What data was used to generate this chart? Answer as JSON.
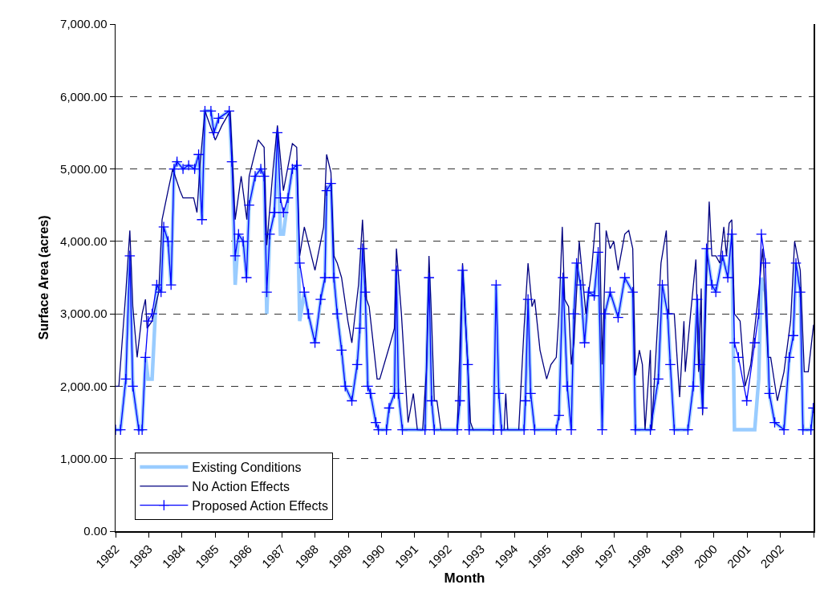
{
  "chart_data": {
    "type": "line",
    "xlabel": "Month",
    "ylabel": "Surface Area (acres)",
    "xlim": [
      1982,
      2003
    ],
    "xticks": [
      1982,
      1983,
      1984,
      1985,
      1986,
      1987,
      1988,
      1989,
      1990,
      1991,
      1992,
      1993,
      1994,
      1995,
      1996,
      1997,
      1998,
      1999,
      2000,
      2001,
      2002,
      {
        "value": 2003,
        "label": null
      }
    ],
    "ylim": [
      0,
      7000
    ],
    "yticks": [
      {
        "value": 0,
        "label": "0.00"
      },
      {
        "value": 1000,
        "label": "1,000.00"
      },
      {
        "value": 2000,
        "label": "2,000.00"
      },
      {
        "value": 3000,
        "label": "3,000.00"
      },
      {
        "value": 4000,
        "label": "4,000.00"
      },
      {
        "value": 5000,
        "label": "5,000.00"
      },
      {
        "value": 6000,
        "label": "6,000.00"
      },
      {
        "value": 7000,
        "label": "7,000.00"
      }
    ],
    "grid": "y",
    "legend": "bottom left",
    "line_style": "solid",
    "series": [
      {
        "name": "Existing Conditions",
        "color": "#99ccff",
        "marker": "none",
        "x": [
          1982.0,
          1982.15,
          1982.31,
          1982.43,
          1982.52,
          1982.7,
          1982.8,
          1982.9,
          1982.98,
          1983.1,
          1983.24,
          1983.37,
          1983.45,
          1983.58,
          1983.67,
          1983.76,
          1983.85,
          1984.03,
          1984.2,
          1984.38,
          1984.5,
          1984.6,
          1984.69,
          1984.87,
          1984.96,
          1985.1,
          1985.42,
          1985.5,
          1985.6,
          1985.7,
          1985.84,
          1985.94,
          1986.02,
          1986.2,
          1986.37,
          1986.47,
          1986.55,
          1986.64,
          1986.78,
          1986.87,
          1986.96,
          1987.05,
          1987.19,
          1987.32,
          1987.45,
          1987.54,
          1987.68,
          1987.8,
          1988.0,
          1988.17,
          1988.3,
          1988.35,
          1988.48,
          1988.57,
          1988.67,
          1988.8,
          1988.91,
          1989.11,
          1989.27,
          1989.35,
          1989.43,
          1989.51,
          1989.59,
          1989.67,
          1989.83,
          1989.91,
          1990.15,
          1990.23,
          1990.39,
          1990.45,
          1990.51,
          1990.63,
          1991.31,
          1991.43,
          1991.51,
          1991.59,
          1992.28,
          1992.36,
          1992.44,
          1992.6,
          1992.64,
          1993.37,
          1993.45,
          1993.53,
          1993.61,
          1994.29,
          1994.33,
          1994.41,
          1994.49,
          1994.61,
          1995.26,
          1995.34,
          1995.46,
          1995.59,
          1995.71,
          1995.79,
          1995.87,
          1995.99,
          1996.11,
          1996.23,
          1996.4,
          1996.52,
          1996.64,
          1996.72,
          1996.88,
          1997.12,
          1997.32,
          1997.56,
          1997.64,
          1998.09,
          1998.33,
          1998.45,
          1998.61,
          1998.69,
          1998.81,
          1999.22,
          1999.38,
          1999.5,
          1999.58,
          1999.66,
          1999.78,
          1999.94,
          2000.06,
          2000.26,
          2000.42,
          2000.54,
          2000.62,
          2000.74,
          2000.99,
          2001.23,
          2001.35,
          2001.43,
          2001.55,
          2001.67,
          2001.83,
          2002.11,
          2002.27,
          2002.39,
          2002.47,
          2002.6,
          2002.68,
          2002.92,
          2002.99
        ],
        "values": [
          1400,
          1400,
          2100,
          3800,
          2000,
          1400,
          1400,
          2400,
          2100,
          2100,
          3400,
          3300,
          4200,
          4000,
          3400,
          5000,
          5100,
          5000,
          5050,
          5000,
          5200,
          4300,
          5800,
          5800,
          5500,
          5700,
          5800,
          5100,
          3400,
          4100,
          4000,
          3500,
          4500,
          4900,
          5000,
          4900,
          3000,
          4100,
          4400,
          5500,
          4100,
          4100,
          4600,
          5000,
          5050,
          2900,
          3300,
          3000,
          2600,
          3200,
          3500,
          4700,
          4800,
          3500,
          3000,
          2500,
          2000,
          1800,
          2300,
          2800,
          3900,
          3300,
          2000,
          1900,
          1500,
          1400,
          1400,
          1700,
          1900,
          3600,
          1900,
          1400,
          1400,
          3500,
          1800,
          1400,
          1400,
          1800,
          3600,
          2300,
          1400,
          1400,
          3400,
          1900,
          1400,
          1400,
          1800,
          3200,
          1900,
          1400,
          1400,
          1600,
          3500,
          2000,
          1400,
          3000,
          3700,
          3400,
          2600,
          3300,
          3250,
          3850,
          1400,
          3000,
          3300,
          2950,
          3500,
          3300,
          1400,
          1400,
          2100,
          3400,
          3000,
          2300,
          1400,
          1400,
          2000,
          3200,
          2300,
          1700,
          3900,
          3400,
          3300,
          3800,
          3500,
          4100,
          1400,
          1400,
          1400,
          1400,
          2100,
          3500,
          3300,
          1900,
          1500,
          1400,
          2400,
          2700,
          3700,
          3300,
          1400,
          1400,
          1700
        ]
      },
      {
        "name": "No Action Effects",
        "color": "#000080",
        "marker": "none",
        "x": [
          1982.0,
          1982.1,
          1982.31,
          1982.43,
          1982.52,
          1982.65,
          1982.8,
          1982.9,
          1982.95,
          1983.1,
          1983.3,
          1983.4,
          1983.58,
          1983.72,
          1983.94,
          1984.03,
          1984.35,
          1984.45,
          1984.55,
          1984.69,
          1985.0,
          1985.2,
          1985.45,
          1985.6,
          1985.78,
          1985.95,
          1986.02,
          1986.29,
          1986.47,
          1986.55,
          1986.74,
          1986.87,
          1987.05,
          1987.32,
          1987.45,
          1987.54,
          1987.68,
          1988.0,
          1988.26,
          1988.35,
          1988.48,
          1988.57,
          1988.67,
          1988.8,
          1988.99,
          1989.11,
          1989.31,
          1989.43,
          1989.55,
          1989.63,
          1989.87,
          1989.95,
          1990.27,
          1990.39,
          1990.45,
          1990.6,
          1990.8,
          1990.96,
          1991.08,
          1991.24,
          1991.35,
          1991.43,
          1991.51,
          1991.59,
          1991.67,
          1991.79,
          1992.28,
          1992.44,
          1992.52,
          1992.68,
          1992.76,
          1993.69,
          1993.74,
          1993.8,
          1994.13,
          1994.29,
          1994.41,
          1994.53,
          1994.61,
          1994.77,
          1994.97,
          1995.1,
          1995.26,
          1995.34,
          1995.44,
          1995.51,
          1995.63,
          1995.71,
          1995.79,
          1995.95,
          1996.15,
          1996.32,
          1996.44,
          1996.56,
          1996.64,
          1996.76,
          1996.88,
          1996.99,
          1997.12,
          1997.32,
          1997.44,
          1997.56,
          1997.64,
          1997.76,
          1997.85,
          1997.93,
          1998.09,
          1998.13,
          1998.41,
          1998.57,
          1998.65,
          1998.81,
          1998.97,
          1999.1,
          1999.14,
          1999.3,
          1999.46,
          1999.54,
          1999.62,
          1999.66,
          1999.78,
          1999.86,
          1999.94,
          2000.06,
          2000.18,
          2000.3,
          2000.38,
          2000.46,
          2000.54,
          2000.62,
          2000.79,
          2000.94,
          2001.11,
          2001.35,
          2001.47,
          2001.63,
          2001.71,
          2001.91,
          2002.11,
          2002.31,
          2002.43,
          2002.6,
          2002.72,
          2002.84,
          2003.0
        ],
        "values": [
          2000,
          2000,
          3300,
          4150,
          3100,
          2400,
          3000,
          3200,
          2800,
          2900,
          3300,
          4300,
          4700,
          5000,
          4700,
          4600,
          4600,
          4400,
          5100,
          5800,
          5400,
          5600,
          5800,
          4300,
          4900,
          4300,
          4900,
          5400,
          5300,
          3950,
          5000,
          5600,
          4700,
          5350,
          5300,
          3800,
          4200,
          3600,
          4200,
          5200,
          4950,
          3800,
          3700,
          3500,
          2900,
          2600,
          3400,
          4300,
          3200,
          3100,
          2100,
          2100,
          2600,
          2800,
          3900,
          3000,
          1500,
          1900,
          1400,
          1400,
          2200,
          3800,
          2900,
          1800,
          1800,
          1400,
          1400,
          3700,
          3000,
          1500,
          1400,
          1400,
          1900,
          1400,
          1400,
          2800,
          3700,
          3100,
          3200,
          2500,
          2100,
          2300,
          2400,
          3000,
          4200,
          3200,
          3100,
          2300,
          2600,
          4000,
          3000,
          3600,
          4250,
          4250,
          2300,
          4150,
          3900,
          4000,
          3600,
          4100,
          4150,
          3900,
          2150,
          2500,
          2300,
          1400,
          2500,
          1400,
          3700,
          4150,
          3000,
          3000,
          1850,
          2900,
          2200,
          3000,
          3750,
          2200,
          3350,
          1600,
          3500,
          4550,
          3800,
          3800,
          3700,
          4200,
          3800,
          4250,
          4300,
          3000,
          2900,
          2000,
          2300,
          3300,
          3900,
          2400,
          2400,
          1800,
          2200,
          2900,
          4000,
          3600,
          2200,
          2200,
          2850
        ]
      },
      {
        "name": "Proposed Action Effects",
        "color": "#0000ff",
        "marker": "cross",
        "x": [
          1982.0,
          1982.15,
          1982.31,
          1982.43,
          1982.52,
          1982.7,
          1982.8,
          1982.9,
          1982.98,
          1983.1,
          1983.24,
          1983.37,
          1983.45,
          1983.58,
          1983.67,
          1983.76,
          1983.85,
          1984.03,
          1984.2,
          1984.38,
          1984.5,
          1984.6,
          1984.69,
          1984.87,
          1984.96,
          1985.1,
          1985.42,
          1985.5,
          1985.6,
          1985.7,
          1985.84,
          1985.94,
          1986.02,
          1986.2,
          1986.37,
          1986.47,
          1986.55,
          1986.64,
          1986.78,
          1986.87,
          1986.96,
          1987.05,
          1987.19,
          1987.32,
          1987.45,
          1987.54,
          1987.68,
          1987.8,
          1988.0,
          1988.17,
          1988.3,
          1988.35,
          1988.48,
          1988.57,
          1988.67,
          1988.8,
          1988.91,
          1989.11,
          1989.27,
          1989.35,
          1989.43,
          1989.51,
          1989.59,
          1989.67,
          1989.83,
          1989.91,
          1990.15,
          1990.23,
          1990.39,
          1990.45,
          1990.51,
          1990.63,
          1991.31,
          1991.43,
          1991.51,
          1991.59,
          1992.28,
          1992.36,
          1992.44,
          1992.6,
          1992.64,
          1993.37,
          1993.45,
          1993.53,
          1993.61,
          1994.29,
          1994.33,
          1994.41,
          1994.49,
          1994.61,
          1995.26,
          1995.34,
          1995.46,
          1995.59,
          1995.71,
          1995.79,
          1995.87,
          1995.99,
          1996.11,
          1996.23,
          1996.4,
          1996.52,
          1996.64,
          1996.72,
          1996.88,
          1997.12,
          1997.32,
          1997.56,
          1997.64,
          1998.09,
          1998.33,
          1998.45,
          1998.61,
          1998.69,
          1998.81,
          1999.22,
          1999.38,
          1999.5,
          1999.58,
          1999.66,
          1999.78,
          1999.94,
          2000.06,
          2000.26,
          2000.42,
          2000.54,
          2000.62,
          2000.74,
          2000.99,
          2001.23,
          2001.35,
          2001.43,
          2001.55,
          2001.67,
          2001.83,
          2002.11,
          2002.27,
          2002.39,
          2002.47,
          2002.6,
          2002.68,
          2002.92,
          2002.99
        ],
        "values": [
          1400,
          1400,
          2100,
          3800,
          2000,
          1400,
          1400,
          2400,
          2900,
          3000,
          3400,
          3300,
          4200,
          4000,
          3400,
          5000,
          5100,
          5000,
          5050,
          5000,
          5200,
          4300,
          5800,
          5800,
          5500,
          5700,
          5800,
          5100,
          3800,
          4100,
          4000,
          3500,
          4500,
          4900,
          5000,
          4900,
          3300,
          4100,
          4400,
          5500,
          4600,
          4400,
          4600,
          5000,
          5050,
          3700,
          3300,
          3000,
          2600,
          3200,
          3500,
          4700,
          4800,
          3500,
          3000,
          2500,
          2000,
          1800,
          2300,
          2800,
          3900,
          3300,
          2000,
          1900,
          1500,
          1400,
          1400,
          1700,
          1900,
          3600,
          1900,
          1400,
          1400,
          3500,
          1800,
          1400,
          1400,
          1800,
          3600,
          2300,
          1400,
          1400,
          3400,
          1900,
          1400,
          1400,
          1800,
          3200,
          1900,
          1400,
          1400,
          1600,
          3500,
          2000,
          1400,
          3000,
          3700,
          3400,
          2600,
          3300,
          3250,
          3850,
          1400,
          3000,
          3300,
          2950,
          3500,
          3300,
          1400,
          1400,
          2100,
          3400,
          3000,
          2300,
          1400,
          1400,
          2000,
          3200,
          2300,
          1700,
          3900,
          3400,
          3300,
          3800,
          3500,
          4100,
          2600,
          2400,
          1800,
          2600,
          3000,
          4100,
          3700,
          1900,
          1500,
          1400,
          2400,
          2700,
          3700,
          3300,
          1400,
          1400,
          1700
        ]
      }
    ]
  }
}
